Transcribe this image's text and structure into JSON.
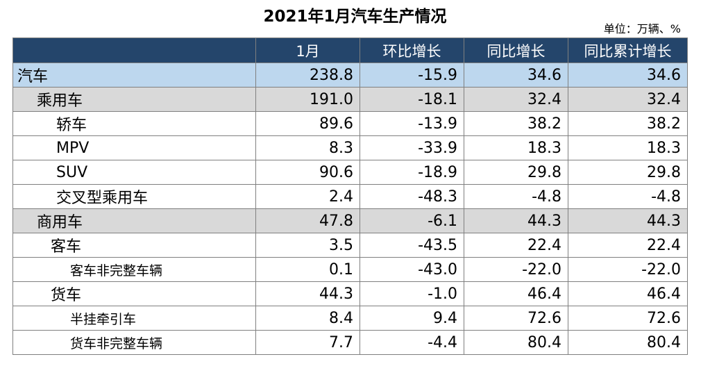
{
  "title": "2021年1月汽车生产情况",
  "unit": "单位：万辆、%",
  "columns": [
    "",
    "1月",
    "环比增长",
    "同比增长",
    "同比累计增长"
  ],
  "rows": [
    {
      "name": "汽车",
      "level": 0,
      "values": [
        "238.8",
        "-15.9",
        "34.6",
        "34.6"
      ]
    },
    {
      "name": "乘用车",
      "level": 1,
      "values": [
        "191.0",
        "-18.1",
        "32.4",
        "32.4"
      ]
    },
    {
      "name": "轿车",
      "level": 2,
      "values": [
        "89.6",
        "-13.9",
        "38.2",
        "38.2"
      ]
    },
    {
      "name": "MPV",
      "level": 2,
      "values": [
        "8.3",
        "-33.9",
        "18.3",
        "18.3"
      ]
    },
    {
      "name": "SUV",
      "level": 2,
      "values": [
        "90.6",
        "-18.9",
        "29.8",
        "29.8"
      ]
    },
    {
      "name": "交叉型乘用车",
      "level": 2,
      "values": [
        "2.4",
        "-48.3",
        "-4.8",
        "-4.8"
      ]
    },
    {
      "name": "商用车",
      "level": 1,
      "values": [
        "47.8",
        "-6.1",
        "44.3",
        "44.3"
      ]
    },
    {
      "name": "客车",
      "level": 3,
      "values": [
        "3.5",
        "-43.5",
        "22.4",
        "22.4"
      ]
    },
    {
      "name": "客车非完整车辆",
      "level": 4,
      "values": [
        "0.1",
        "-43.0",
        "-22.0",
        "-22.0"
      ]
    },
    {
      "name": "货车",
      "level": 3,
      "values": [
        "44.3",
        "-1.0",
        "46.4",
        "46.4"
      ]
    },
    {
      "name": "半挂牵引车",
      "level": 4,
      "values": [
        "8.4",
        "9.4",
        "72.6",
        "72.6"
      ]
    },
    {
      "name": "货车非完整车辆",
      "level": 4,
      "values": [
        "7.7",
        "-4.4",
        "80.4",
        "80.4"
      ]
    }
  ]
}
